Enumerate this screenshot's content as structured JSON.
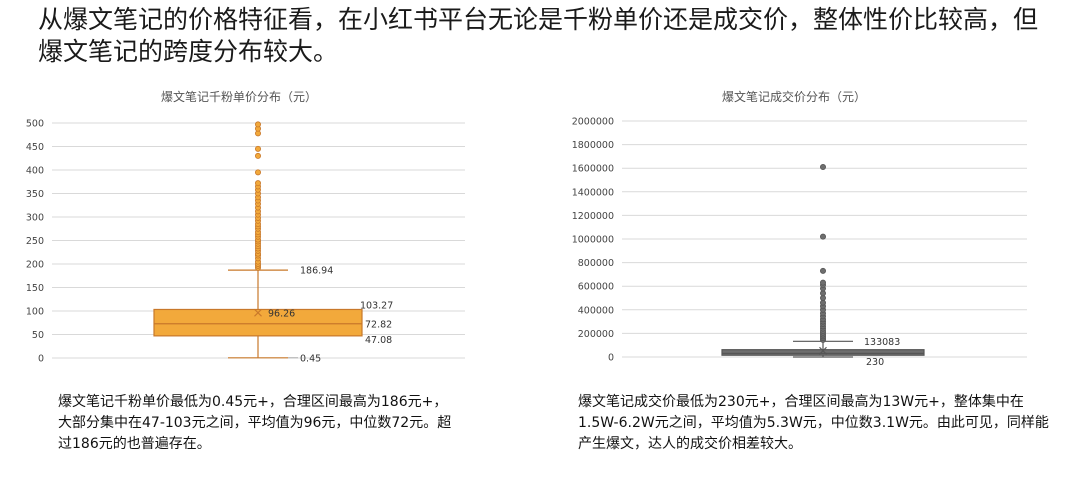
{
  "headline": "从爆文笔记的价格特征看，在小红书平台无论是千粉单价还是成交价，整体性价比较高，但爆文笔记的跨度分布较大。",
  "colors": {
    "left_box": "#f2a93b",
    "left_stroke": "#c8782a",
    "right_box": "#6e6e6e",
    "right_stroke": "#555555",
    "grid": "#d9d9d9"
  },
  "chart_data": [
    {
      "type": "box",
      "title": "爆文笔记千粉单价分布（元）",
      "ylim": [
        0,
        500
      ],
      "yticks": [
        0,
        50,
        100,
        150,
        200,
        250,
        300,
        350,
        400,
        450,
        500
      ],
      "whisker_low": 0.45,
      "q1": 47.08,
      "median": 72.82,
      "mean": 96.26,
      "q3": 103.27,
      "whisker_high": 186.94,
      "labels": {
        "whisker_high": "186.94",
        "mean": "96.26",
        "q3": "103.27",
        "median": "72.82",
        "q1": "47.08",
        "whisker_low": "0.45"
      },
      "outliers": [
        192,
        196,
        200,
        205,
        212,
        218,
        222,
        228,
        233,
        238,
        243,
        248,
        252,
        258,
        263,
        268,
        275,
        280,
        285,
        292,
        298,
        305,
        312,
        320,
        328,
        335,
        342,
        350,
        358,
        365,
        372,
        395,
        430,
        445,
        478,
        488,
        497
      ]
    },
    {
      "type": "box",
      "title": "爆文笔记成交价分布（元）",
      "ylim": [
        0,
        2000000
      ],
      "yticks": [
        0,
        200000,
        400000,
        600000,
        800000,
        1000000,
        1200000,
        1400000,
        1600000,
        1800000,
        2000000
      ],
      "whisker_low": 230,
      "q1": 15000,
      "median": 31000,
      "mean": 53000,
      "q3": 62000,
      "whisker_high": 133083,
      "labels": {
        "whisker_high": "133083",
        "whisker_low": "230"
      },
      "outliers": [
        145000,
        160000,
        175000,
        190000,
        205000,
        220000,
        240000,
        260000,
        280000,
        300000,
        320000,
        345000,
        370000,
        400000,
        430000,
        460000,
        500000,
        540000,
        580000,
        610000,
        630000,
        730000,
        1020000,
        1610000
      ]
    }
  ],
  "descriptions": {
    "left": "爆文笔记千粉单价最低为0.45元+，合理区间最高为186元+，大部分集中在47-103元之间，平均值为96元，中位数72元。超过186元的也普遍存在。",
    "right": "爆文笔记成交价最低为230元+，合理区间最高为13W元+，整体集中在1.5W-6.2W元之间，平均值为5.3W元，中位数3.1W元。由此可见，同样能产生爆文，达人的成交价相差较大。"
  }
}
